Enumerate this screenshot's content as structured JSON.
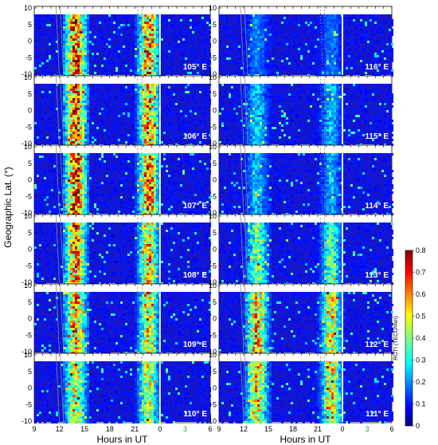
{
  "chart_data": {
    "type": "heatmap",
    "ylabel": "Geographic Lat. (°)",
    "xlabel": "Hours in UT",
    "x_ticks": [
      "9",
      "12",
      "15",
      "18",
      "21",
      "0",
      "3",
      "6"
    ],
    "x_ticks_colors": [
      "#000000",
      "#000000",
      "#000000",
      "#000000",
      "#000000",
      "#000000",
      "#1fa33a",
      "#000000"
    ],
    "y_ticks": [
      "10",
      "5",
      "0",
      "-5",
      "-10"
    ],
    "ylim": [
      -10,
      10
    ],
    "colorbar": {
      "label": "ROTI (TECU/min)",
      "min": 0,
      "max": 0.8,
      "ticks": [
        "0.8",
        "0.7",
        "0.6",
        "0.5",
        "0.4",
        "0.3",
        "0.2",
        "0.1",
        "0"
      ],
      "colors": [
        "#00007f",
        "#0000ff",
        "#007fff",
        "#00ffff",
        "#7fff7f",
        "#ffff00",
        "#ff7f00",
        "#ff0000",
        "#7f0000"
      ]
    },
    "panels_left": [
      "105° E",
      "106° E",
      "107° E",
      "108° E",
      "109° E",
      "110° E"
    ],
    "panels_right": [
      "116° E",
      "115° E",
      "114° E",
      "113° E",
      "112° E",
      "111° E"
    ],
    "panel_activity_left": [
      0.55,
      0.55,
      0.6,
      0.5,
      0.45,
      0.4
    ],
    "panel_activity_right": [
      0.1,
      0.18,
      0.15,
      0.3,
      0.45,
      0.45
    ]
  }
}
